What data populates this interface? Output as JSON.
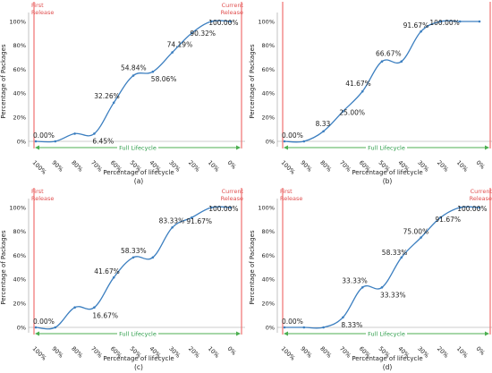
{
  "colors": {
    "series": "#3c7fc0",
    "release_line": "#f07070",
    "lifecycle": "#4caf50"
  },
  "chart_data": [
    {
      "type": "line",
      "caption": "(a)",
      "x": [
        "100%",
        "90%",
        "80%",
        "70%",
        "60%",
        "50%",
        "40%",
        "30%",
        "20%",
        "10%",
        "0%"
      ],
      "values": [
        0,
        0,
        6.45,
        6.45,
        32.26,
        54.84,
        58.06,
        74.19,
        90.32,
        100,
        100
      ],
      "data_labels": [
        {
          "i": 0,
          "text": "0.00%"
        },
        {
          "i": 3,
          "text": "6.45%"
        },
        {
          "i": 4,
          "text": "32.26%"
        },
        {
          "i": 5,
          "text": "54.84%"
        },
        {
          "i": 6,
          "text": "58.06%"
        },
        {
          "i": 7,
          "text": "74.19%"
        },
        {
          "i": 8,
          "text": "90.32%"
        },
        {
          "i": 9,
          "text": "100.00%"
        }
      ],
      "yticks": [
        "0%",
        "20%",
        "40%",
        "60%",
        "80%",
        "100%"
      ],
      "ylim": [
        0,
        100
      ],
      "xlabel": "Percentage of lifecycle",
      "ylabel": "Percentage of Packages",
      "first_release": "First Release",
      "current_release": "Current Release",
      "lifecycle_label": "Full Lifecycle"
    },
    {
      "type": "line",
      "caption": "(b)",
      "x": [
        "100%",
        "90%",
        "80%",
        "70%",
        "60%",
        "50%",
        "40%",
        "30%",
        "20%",
        "10%",
        "0%"
      ],
      "values": [
        0,
        0,
        8.33,
        25.0,
        41.67,
        66.67,
        66.67,
        91.67,
        100,
        100,
        100
      ],
      "data_labels": [
        {
          "i": 0,
          "text": "0.00%"
        },
        {
          "i": 2,
          "text": "8.33"
        },
        {
          "i": 3,
          "text": "25.00%"
        },
        {
          "i": 4,
          "text": "41.67%"
        },
        {
          "i": 5,
          "text": "66.67%"
        },
        {
          "i": 7,
          "text": "91.67%"
        },
        {
          "i": 8,
          "text": "100.00%"
        }
      ],
      "yticks": [
        "0%",
        "20%",
        "40%",
        "60%",
        "80%",
        "100%"
      ],
      "ylim": [
        0,
        100
      ],
      "xlabel": "Percentage of lifecycle",
      "ylabel": "Percentage of Packages",
      "first_release": "",
      "current_release": "",
      "lifecycle_label": "Full Lifecycle"
    },
    {
      "type": "line",
      "caption": "(c)",
      "x": [
        "100%",
        "90%",
        "80%",
        "70%",
        "60%",
        "50%",
        "40%",
        "30%",
        "20%",
        "10%",
        "0%"
      ],
      "values": [
        0,
        0,
        16.67,
        16.67,
        41.67,
        58.33,
        58.33,
        83.33,
        91.67,
        100,
        100
      ],
      "data_labels": [
        {
          "i": 0,
          "text": "0.00%"
        },
        {
          "i": 3,
          "text": "16.67%"
        },
        {
          "i": 4,
          "text": "41.67%"
        },
        {
          "i": 5,
          "text": "58.33%"
        },
        {
          "i": 7,
          "text": "83.33%"
        },
        {
          "i": 8,
          "text": "91.67%"
        },
        {
          "i": 9,
          "text": "100.00%"
        }
      ],
      "yticks": [
        "0%",
        "20%",
        "40%",
        "60%",
        "80%",
        "100%"
      ],
      "ylim": [
        0,
        100
      ],
      "xlabel": "Percentage of lifecycle",
      "ylabel": "Percentage of Packages",
      "first_release": "First Release",
      "current_release": "Current Release",
      "lifecycle_label": "Full Lifecycle"
    },
    {
      "type": "line",
      "caption": "(d)",
      "x": [
        "100%",
        "90%",
        "80%",
        "70%",
        "60%",
        "50%",
        "40%",
        "30%",
        "20%",
        "10%",
        "0%"
      ],
      "values": [
        0,
        0,
        0,
        8.33,
        33.33,
        33.33,
        58.33,
        75.0,
        91.67,
        100,
        100
      ],
      "data_labels": [
        {
          "i": 0,
          "text": "0.00%"
        },
        {
          "i": 3,
          "text": "8.33%"
        },
        {
          "i": 4,
          "text": "33.33%"
        },
        {
          "i": 5,
          "text": "33.33%"
        },
        {
          "i": 6,
          "text": "58.33%"
        },
        {
          "i": 7,
          "text": "75.00%"
        },
        {
          "i": 8,
          "text": "91.67%"
        },
        {
          "i": 9,
          "text": "100.00%"
        }
      ],
      "yticks": [
        "0%",
        "20%",
        "40%",
        "60%",
        "80%",
        "100%"
      ],
      "ylim": [
        0,
        100
      ],
      "xlabel": "Percentage of lifecycle",
      "ylabel": "Percentage of Packages",
      "first_release": "First Release",
      "current_release": "Current Release",
      "lifecycle_label": "Full Lifecycle"
    }
  ]
}
